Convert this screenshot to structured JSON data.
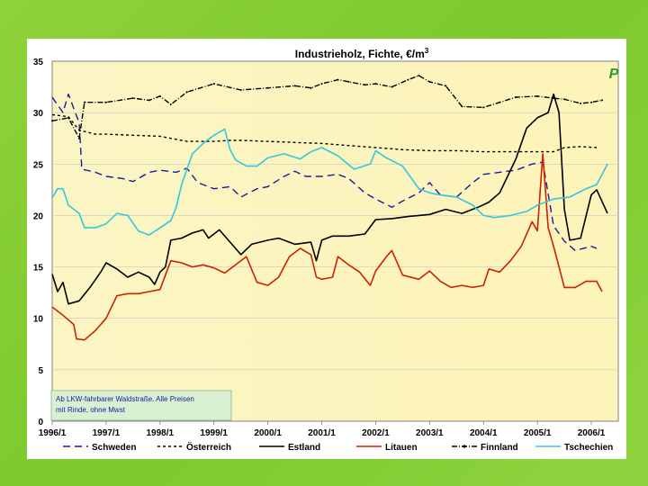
{
  "chart_data": {
    "type": "line",
    "title": "Industrieholz, Fichte, €/m³",
    "title_main": "Industrieholz, Fichte, €/m",
    "title_sup": "3",
    "xlabel": "",
    "ylabel": "",
    "ylim": [
      0,
      35
    ],
    "yticks": [
      0,
      5,
      10,
      15,
      20,
      25,
      30,
      35
    ],
    "xlim": [
      1996.0,
      2006.5
    ],
    "xtick_labels": [
      "1996/1",
      "1997/1",
      "1998/1",
      "1999/1",
      "2000/1",
      "2001/1",
      "2002/1",
      "2003/1",
      "2004/1",
      "2005/1",
      "2006/1"
    ],
    "xtick_values": [
      1996,
      1997,
      1998,
      1999,
      2000,
      2001,
      2002,
      2003,
      2004,
      2005,
      2006
    ],
    "annotation": [
      "Ab LKW-fahrbarer Waldstraße. Alle Preisen",
      "mit Rinde, ohne Mwst"
    ],
    "logo_text": "P",
    "series": [
      {
        "name": "Schweden",
        "color": "#1a1aa0",
        "dash": "8,5",
        "points": [
          [
            1996.0,
            31.5
          ],
          [
            1996.2,
            30.0
          ],
          [
            1996.3,
            31.8
          ],
          [
            1996.5,
            29.0
          ],
          [
            1996.55,
            24.5
          ],
          [
            1996.8,
            24.2
          ],
          [
            1997.0,
            23.8
          ],
          [
            1997.3,
            23.6
          ],
          [
            1997.5,
            23.3
          ],
          [
            1997.8,
            24.2
          ],
          [
            1998.0,
            24.4
          ],
          [
            1998.3,
            24.2
          ],
          [
            1998.5,
            24.6
          ],
          [
            1998.7,
            23.2
          ],
          [
            1999.0,
            22.6
          ],
          [
            1999.3,
            22.8
          ],
          [
            1999.5,
            21.8
          ],
          [
            1999.8,
            22.6
          ],
          [
            2000.0,
            22.8
          ],
          [
            2000.3,
            23.8
          ],
          [
            2000.5,
            24.3
          ],
          [
            2000.7,
            23.8
          ],
          [
            2001.0,
            23.8
          ],
          [
            2001.3,
            24.0
          ],
          [
            2001.5,
            23.6
          ],
          [
            2001.8,
            22.2
          ],
          [
            2002.0,
            21.6
          ],
          [
            2002.3,
            20.8
          ],
          [
            2002.5,
            21.4
          ],
          [
            2002.8,
            22.2
          ],
          [
            2003.0,
            23.2
          ],
          [
            2003.2,
            22.0
          ],
          [
            2003.5,
            21.8
          ],
          [
            2003.8,
            23.2
          ],
          [
            2004.0,
            24.0
          ],
          [
            2004.3,
            24.2
          ],
          [
            2004.6,
            24.4
          ],
          [
            2004.9,
            25.0
          ],
          [
            2005.1,
            25.2
          ],
          [
            2005.3,
            19.0
          ],
          [
            2005.5,
            17.5
          ],
          [
            2005.7,
            16.6
          ],
          [
            2006.0,
            17.0
          ],
          [
            2006.1,
            16.8
          ]
        ]
      },
      {
        "name": "Österreich",
        "color": "#000000",
        "dash": "3,3",
        "points": [
          [
            1996.0,
            29.8
          ],
          [
            1996.3,
            29.6
          ],
          [
            1996.5,
            28.3
          ],
          [
            1996.8,
            27.9
          ],
          [
            1997.0,
            27.9
          ],
          [
            1997.5,
            27.8
          ],
          [
            1998.0,
            27.7
          ],
          [
            1998.5,
            27.2
          ],
          [
            1999.0,
            27.2
          ],
          [
            1999.3,
            27.3
          ],
          [
            1999.5,
            27.3
          ],
          [
            2000.0,
            27.2
          ],
          [
            2000.5,
            27.1
          ],
          [
            2001.0,
            27.0
          ],
          [
            2001.5,
            26.8
          ],
          [
            2002.0,
            26.6
          ],
          [
            2002.5,
            26.4
          ],
          [
            2003.0,
            26.3
          ],
          [
            2003.5,
            26.3
          ],
          [
            2004.0,
            26.2
          ],
          [
            2004.5,
            26.2
          ],
          [
            2005.0,
            26.2
          ],
          [
            2005.3,
            26.2
          ],
          [
            2005.5,
            26.6
          ],
          [
            2005.8,
            26.7
          ],
          [
            2006.1,
            26.6
          ]
        ]
      },
      {
        "name": "Estland",
        "color": "#000000",
        "dash": "",
        "points": [
          [
            1996.0,
            14.3
          ],
          [
            1996.1,
            12.6
          ],
          [
            1996.2,
            13.5
          ],
          [
            1996.3,
            11.4
          ],
          [
            1996.5,
            11.7
          ],
          [
            1996.7,
            13.0
          ],
          [
            1996.9,
            14.5
          ],
          [
            1997.0,
            15.4
          ],
          [
            1997.2,
            14.8
          ],
          [
            1997.4,
            14.0
          ],
          [
            1997.6,
            14.5
          ],
          [
            1997.8,
            14.0
          ],
          [
            1997.9,
            13.3
          ],
          [
            1998.0,
            14.5
          ],
          [
            1998.1,
            15.0
          ],
          [
            1998.2,
            17.6
          ],
          [
            1998.4,
            17.8
          ],
          [
            1998.6,
            18.3
          ],
          [
            1998.8,
            18.6
          ],
          [
            1998.9,
            17.8
          ],
          [
            1999.0,
            18.2
          ],
          [
            1999.1,
            18.6
          ],
          [
            1999.3,
            17.4
          ],
          [
            1999.5,
            16.2
          ],
          [
            1999.7,
            17.2
          ],
          [
            2000.0,
            17.6
          ],
          [
            2000.2,
            17.8
          ],
          [
            2000.5,
            17.2
          ],
          [
            2000.8,
            17.4
          ],
          [
            2000.9,
            15.6
          ],
          [
            2001.0,
            17.6
          ],
          [
            2001.2,
            18.0
          ],
          [
            2001.5,
            18.0
          ],
          [
            2001.8,
            18.2
          ],
          [
            2002.0,
            19.6
          ],
          [
            2002.3,
            19.7
          ],
          [
            2002.6,
            19.9
          ],
          [
            2003.0,
            20.1
          ],
          [
            2003.3,
            20.6
          ],
          [
            2003.6,
            20.2
          ],
          [
            2003.9,
            20.8
          ],
          [
            2004.1,
            21.3
          ],
          [
            2004.3,
            22.2
          ],
          [
            2004.6,
            25.5
          ],
          [
            2004.8,
            28.5
          ],
          [
            2005.0,
            29.5
          ],
          [
            2005.2,
            30.0
          ],
          [
            2005.3,
            31.8
          ],
          [
            2005.4,
            30.0
          ],
          [
            2005.5,
            20.6
          ],
          [
            2005.6,
            17.6
          ],
          [
            2005.8,
            17.8
          ],
          [
            2006.0,
            22.0
          ],
          [
            2006.1,
            22.5
          ],
          [
            2006.3,
            20.2
          ]
        ]
      },
      {
        "name": "Litauen",
        "color": "#cc2200",
        "dash": "",
        "points": [
          [
            1996.0,
            11.1
          ],
          [
            1996.2,
            10.3
          ],
          [
            1996.4,
            9.4
          ],
          [
            1996.45,
            8.0
          ],
          [
            1996.6,
            7.9
          ],
          [
            1996.8,
            8.8
          ],
          [
            1997.0,
            10.0
          ],
          [
            1997.2,
            12.2
          ],
          [
            1997.4,
            12.4
          ],
          [
            1997.6,
            12.4
          ],
          [
            1997.8,
            12.6
          ],
          [
            1998.0,
            12.8
          ],
          [
            1998.2,
            15.6
          ],
          [
            1998.4,
            15.4
          ],
          [
            1998.6,
            15.0
          ],
          [
            1998.8,
            15.2
          ],
          [
            1999.0,
            14.9
          ],
          [
            1999.2,
            14.4
          ],
          [
            1999.4,
            15.2
          ],
          [
            1999.6,
            16.0
          ],
          [
            1999.8,
            13.5
          ],
          [
            2000.0,
            13.2
          ],
          [
            2000.2,
            14.0
          ],
          [
            2000.4,
            16.0
          ],
          [
            2000.6,
            16.8
          ],
          [
            2000.8,
            16.2
          ],
          [
            2000.9,
            14.0
          ],
          [
            2001.0,
            13.8
          ],
          [
            2001.2,
            14.0
          ],
          [
            2001.3,
            16.0
          ],
          [
            2001.5,
            15.2
          ],
          [
            2001.7,
            14.5
          ],
          [
            2001.9,
            13.2
          ],
          [
            2002.0,
            14.6
          ],
          [
            2002.2,
            16.0
          ],
          [
            2002.3,
            16.6
          ],
          [
            2002.5,
            14.2
          ],
          [
            2002.8,
            13.8
          ],
          [
            2003.0,
            14.6
          ],
          [
            2003.2,
            13.6
          ],
          [
            2003.4,
            13.0
          ],
          [
            2003.6,
            13.2
          ],
          [
            2003.8,
            13.0
          ],
          [
            2004.0,
            13.2
          ],
          [
            2004.1,
            14.8
          ],
          [
            2004.3,
            14.5
          ],
          [
            2004.5,
            15.6
          ],
          [
            2004.7,
            17.0
          ],
          [
            2004.9,
            19.4
          ],
          [
            2005.0,
            18.5
          ],
          [
            2005.1,
            26.0
          ],
          [
            2005.2,
            18.8
          ],
          [
            2005.3,
            17.0
          ],
          [
            2005.4,
            15.0
          ],
          [
            2005.5,
            13.0
          ],
          [
            2005.7,
            13.0
          ],
          [
            2005.9,
            13.6
          ],
          [
            2006.1,
            13.6
          ],
          [
            2006.2,
            12.6
          ]
        ]
      },
      {
        "name": "Finnland",
        "color": "#000000",
        "dash": "6,2,1,2",
        "points": [
          [
            1996.0,
            29.2
          ],
          [
            1996.3,
            29.5
          ],
          [
            1996.5,
            27.5
          ],
          [
            1996.6,
            31.0
          ],
          [
            1997.0,
            31.0
          ],
          [
            1997.5,
            31.4
          ],
          [
            1997.8,
            31.2
          ],
          [
            1998.0,
            31.6
          ],
          [
            1998.2,
            30.8
          ],
          [
            1998.5,
            32.0
          ],
          [
            1999.0,
            32.8
          ],
          [
            1999.5,
            32.2
          ],
          [
            2000.0,
            32.4
          ],
          [
            2000.5,
            32.6
          ],
          [
            2000.8,
            32.4
          ],
          [
            2001.0,
            32.8
          ],
          [
            2001.3,
            33.2
          ],
          [
            2001.5,
            33.0
          ],
          [
            2001.8,
            32.7
          ],
          [
            2002.0,
            32.8
          ],
          [
            2002.3,
            32.5
          ],
          [
            2002.6,
            33.2
          ],
          [
            2002.8,
            33.6
          ],
          [
            2003.0,
            33.0
          ],
          [
            2003.3,
            32.6
          ],
          [
            2003.6,
            30.6
          ],
          [
            2004.0,
            30.5
          ],
          [
            2004.3,
            31.0
          ],
          [
            2004.6,
            31.5
          ],
          [
            2005.0,
            31.6
          ],
          [
            2005.3,
            31.4
          ],
          [
            2005.5,
            31.3
          ],
          [
            2005.8,
            30.9
          ],
          [
            2006.0,
            31.0
          ],
          [
            2006.2,
            31.2
          ]
        ]
      },
      {
        "name": "Tschechien",
        "color": "#33c8e0",
        "dash": "",
        "points": [
          [
            1996.0,
            21.7
          ],
          [
            1996.1,
            22.6
          ],
          [
            1996.2,
            22.6
          ],
          [
            1996.3,
            21.0
          ],
          [
            1996.5,
            20.2
          ],
          [
            1996.6,
            18.8
          ],
          [
            1996.8,
            18.8
          ],
          [
            1997.0,
            19.2
          ],
          [
            1997.2,
            20.2
          ],
          [
            1997.4,
            20.0
          ],
          [
            1997.6,
            18.5
          ],
          [
            1997.8,
            18.1
          ],
          [
            1998.0,
            18.8
          ],
          [
            1998.2,
            19.5
          ],
          [
            1998.3,
            20.8
          ],
          [
            1998.4,
            23.0
          ],
          [
            1998.6,
            26.0
          ],
          [
            1998.8,
            27.0
          ],
          [
            1999.0,
            27.8
          ],
          [
            1999.2,
            28.4
          ],
          [
            1999.3,
            26.4
          ],
          [
            1999.4,
            25.4
          ],
          [
            1999.6,
            24.8
          ],
          [
            1999.8,
            24.8
          ],
          [
            2000.0,
            25.6
          ],
          [
            2000.3,
            26.0
          ],
          [
            2000.6,
            25.5
          ],
          [
            2000.8,
            26.2
          ],
          [
            2001.0,
            26.6
          ],
          [
            2001.3,
            25.8
          ],
          [
            2001.6,
            24.5
          ],
          [
            2001.9,
            25.0
          ],
          [
            2002.0,
            26.3
          ],
          [
            2002.2,
            25.6
          ],
          [
            2002.5,
            24.8
          ],
          [
            2002.8,
            22.6
          ],
          [
            2003.0,
            22.2
          ],
          [
            2003.2,
            22.0
          ],
          [
            2003.5,
            21.8
          ],
          [
            2003.8,
            21.0
          ],
          [
            2004.0,
            20.0
          ],
          [
            2004.2,
            19.8
          ],
          [
            2004.5,
            20.0
          ],
          [
            2004.8,
            20.4
          ],
          [
            2005.0,
            21.0
          ],
          [
            2005.3,
            21.6
          ],
          [
            2005.6,
            21.8
          ],
          [
            2005.9,
            22.6
          ],
          [
            2006.1,
            23.0
          ],
          [
            2006.3,
            25.0
          ]
        ]
      }
    ]
  }
}
